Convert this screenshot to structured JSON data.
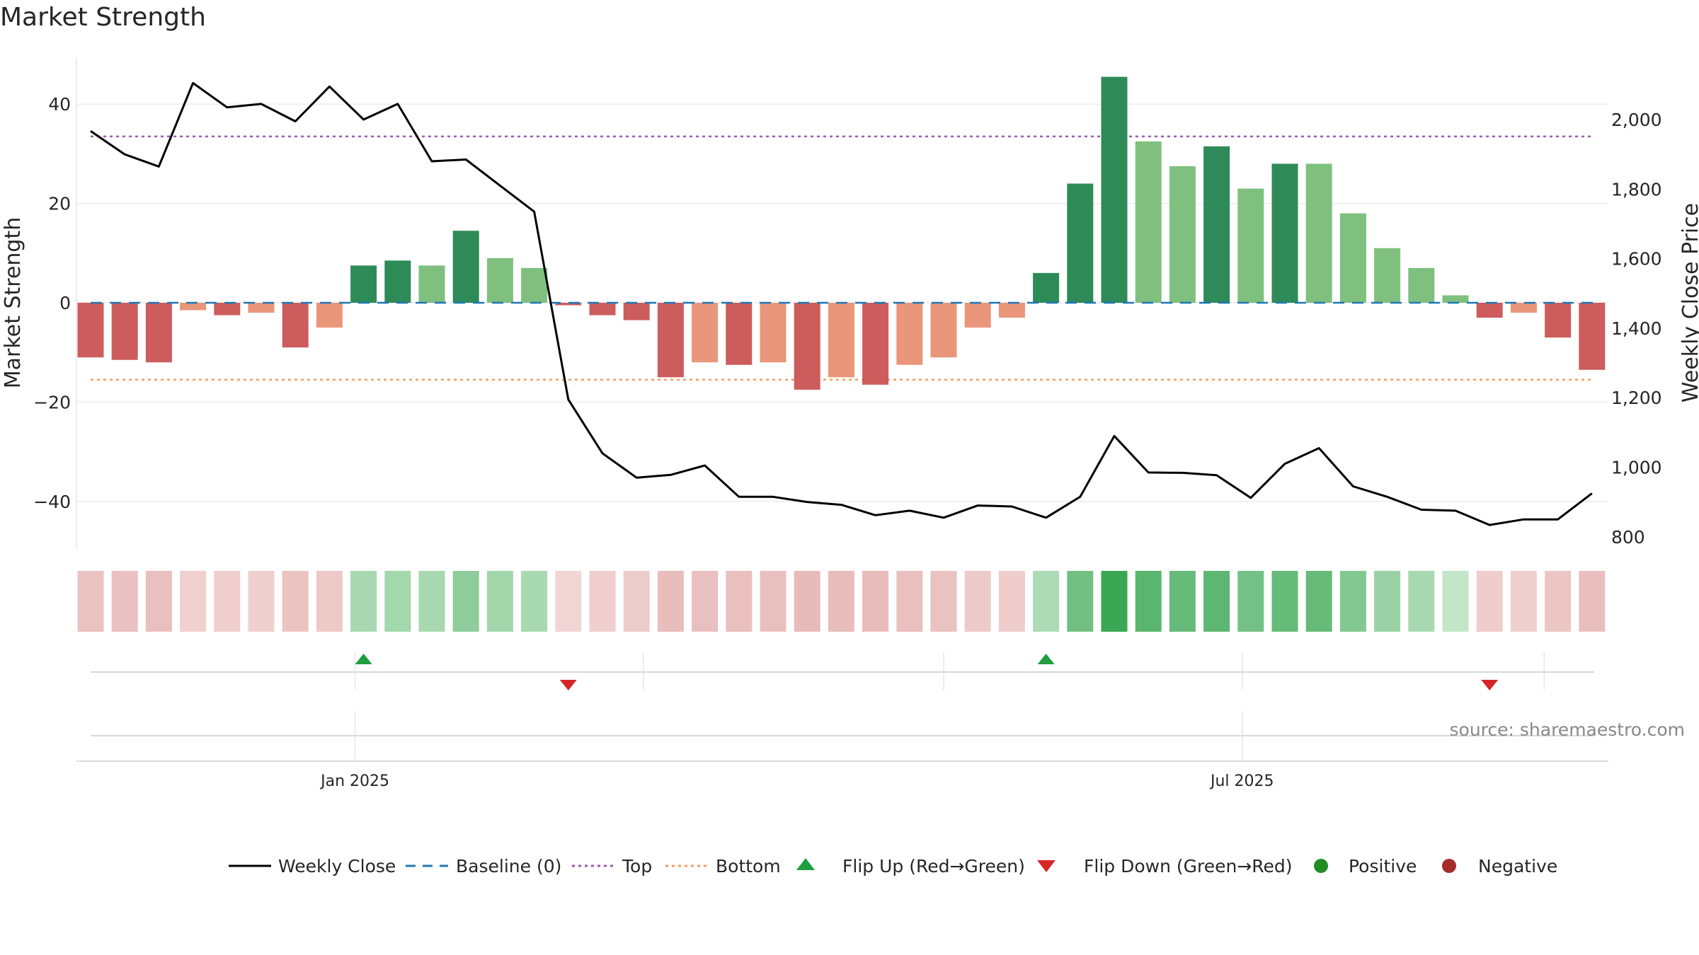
{
  "chart_data": {
    "type": "bar",
    "title": "Market Strength",
    "ylabel": "Market Strength",
    "y2label": "Weekly Close Price",
    "ylim": [
      -49,
      49
    ],
    "y2lim": [
      760,
      2200
    ],
    "yticks": [
      40,
      20,
      0,
      -20,
      -40
    ],
    "ytick_labels": [
      "40",
      "20",
      "0",
      "−20",
      "−40"
    ],
    "y2ticks": [
      2000,
      1800,
      1600,
      1400,
      1200,
      1000,
      800
    ],
    "y2tick_labels": [
      "2,000",
      "1,800",
      "1,600",
      "1,400",
      "1,200",
      "1,000",
      "800"
    ],
    "x_tick_labels": [
      {
        "label": "Jan 2025",
        "index": 7.75
      },
      {
        "label": "Jul 2025",
        "index": 33.75
      }
    ],
    "top_level": 33.5,
    "bottom_level": -15.5,
    "baseline": 0,
    "strength": [
      -11,
      -11.5,
      -12,
      -1.5,
      -2.5,
      -2,
      -9,
      -5,
      7.5,
      8.5,
      7.5,
      14.5,
      9,
      7,
      -0.5,
      -2.5,
      -3.5,
      -15,
      -12,
      -12.5,
      -12,
      -17.5,
      -15,
      -16.5,
      -12.5,
      -11,
      -5,
      -3,
      6,
      24,
      45.5,
      32.5,
      27.5,
      31.5,
      23,
      28,
      28,
      18,
      11,
      7,
      1.5,
      -3,
      -2,
      -7,
      -13.5
    ],
    "bar_shade": [
      "dark",
      "dark",
      "dark",
      "light",
      "dark",
      "light",
      "dark",
      "light",
      "dark",
      "dark",
      "light",
      "dark",
      "light",
      "light",
      "dark",
      "dark",
      "dark",
      "dark",
      "light",
      "dark",
      "light",
      "dark",
      "light",
      "dark",
      "light",
      "light",
      "light",
      "light",
      "dark",
      "dark",
      "dark",
      "light",
      "light",
      "dark",
      "light",
      "dark",
      "light",
      "light",
      "light",
      "light",
      "light",
      "dark",
      "light",
      "dark",
      "dark"
    ],
    "weekly_close": [
      1967,
      1900,
      1865,
      2105,
      2035,
      2045,
      1995,
      2095,
      2000,
      2045,
      1880,
      1885,
      1810,
      1735,
      1195,
      1040,
      970,
      978,
      1005,
      915,
      915,
      900,
      892,
      862,
      875,
      855,
      890,
      887,
      855,
      915,
      1090,
      985,
      984,
      977,
      912,
      1010,
      1055,
      945,
      915,
      878,
      875,
      834,
      850,
      850,
      925
    ],
    "flip_up_index": [
      8,
      28
    ],
    "flip_down_index": [
      14,
      41
    ],
    "legend": [
      "Weekly Close",
      "Baseline (0)",
      "Top",
      "Bottom",
      "Flip Up (Red→Green)",
      "Flip Down (Green→Red)",
      "Positive",
      "Negative"
    ],
    "legend_placement": "bottom-center",
    "grid": true
  },
  "source": "source: sharemaestro.com",
  "colors": {
    "pos_dark": "#2e8b57",
    "pos_light": "#7fc07f",
    "neg_dark": "#cd5c5c",
    "neg_light": "#e9967a",
    "top_line": "#9b59b6",
    "bottom_line": "#f0a060",
    "baseline": "#1f77b4",
    "close_line": "#000000",
    "flip_up": "#1e9e3e",
    "flip_down": "#d62728",
    "positive_dot": "#228b22",
    "negative_dot": "#a52a2a"
  }
}
